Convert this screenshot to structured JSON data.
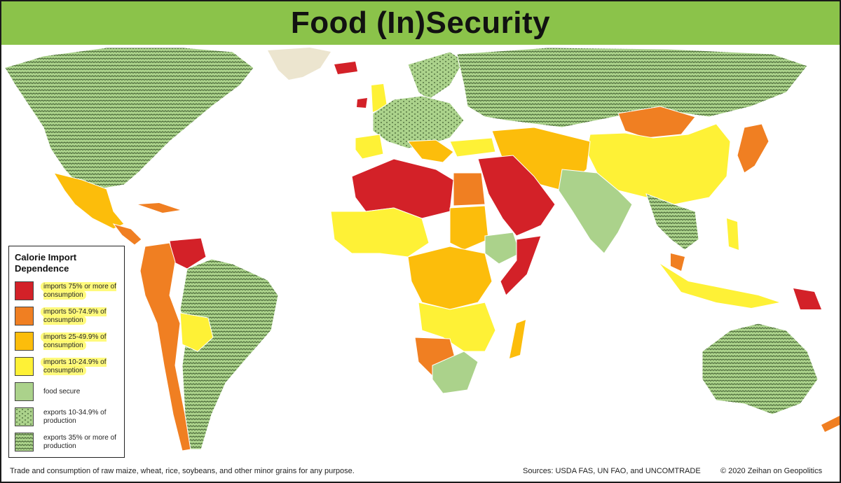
{
  "title": "Food (In)Security",
  "legend": {
    "title": "Calorie Import Dependence",
    "items": [
      {
        "label": "imports 75% or more of consumption",
        "color": "#d32128",
        "pattern": false,
        "highlighted": true
      },
      {
        "label": "imports 50-74.9% of consumption",
        "color": "#f07f22",
        "pattern": false,
        "highlighted": true
      },
      {
        "label": "imports 25-49.9% of consumption",
        "color": "#fcbd0b",
        "pattern": false,
        "highlighted": true
      },
      {
        "label": "imports 10-24.9% of consumption",
        "color": "#fef136",
        "pattern": false,
        "highlighted": true
      },
      {
        "label": "food secure",
        "color": "#abd28b",
        "pattern": false,
        "highlighted": false
      },
      {
        "label": "exports 10-34.9% of production",
        "color": "#abd28b",
        "pattern": "light",
        "highlighted": false
      },
      {
        "label": "exports 35% or more of production",
        "color": "#abd28b",
        "pattern": "dense",
        "highlighted": false
      }
    ]
  },
  "colors": {
    "ocean": "#ffffff",
    "no_data": "#ece5cf",
    "title_bar": "#8bc34a"
  },
  "footer": {
    "note": "Trade and consumption of raw maize, wheat, rice, soybeans, and other minor grains for any purpose.",
    "sources": "Sources: USDA FAS, UN FAO, and UNCOMTRADE",
    "copyright": "© 2020 Zeihan on Geopolitics"
  }
}
